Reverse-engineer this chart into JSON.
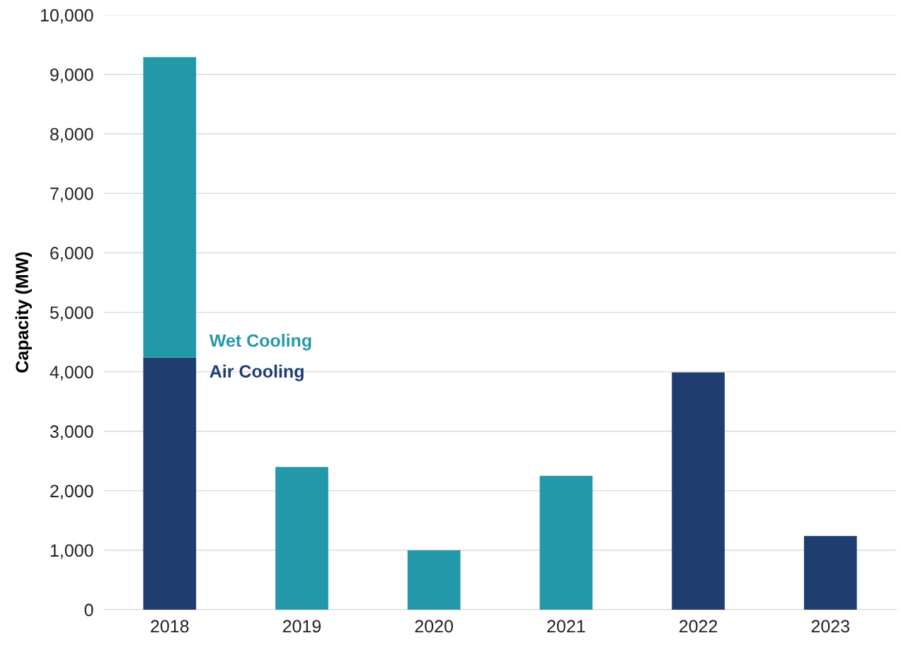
{
  "chart_data": {
    "type": "bar",
    "ylabel": "Capacity (MW)",
    "categories": [
      "2018",
      "2019",
      "2020",
      "2021",
      "2022",
      "2023"
    ],
    "stacked": true,
    "series": [
      {
        "name": "Air Cooling",
        "color": "#1f3d6f",
        "values": [
          4240,
          null,
          null,
          null,
          3990,
          1240
        ]
      },
      {
        "name": "Wet Cooling",
        "color": "#2398a8",
        "values": [
          5050,
          2400,
          1000,
          2250,
          null,
          null
        ]
      }
    ],
    "ylim": [
      0,
      10000
    ],
    "yticks": [
      {
        "value": 0,
        "label": "0"
      },
      {
        "value": 1000,
        "label": "1,000"
      },
      {
        "value": 2000,
        "label": "2,000"
      },
      {
        "value": 3000,
        "label": "3,000"
      },
      {
        "value": 4000,
        "label": "4,000"
      },
      {
        "value": 5000,
        "label": "5,000"
      },
      {
        "value": 6000,
        "label": "6,000"
      },
      {
        "value": 7000,
        "label": "7,000"
      },
      {
        "value": 8000,
        "label": "8,000"
      },
      {
        "value": 9000,
        "label": "9,000"
      },
      {
        "value": 10000,
        "label": "10,000"
      }
    ],
    "grid": "y"
  }
}
